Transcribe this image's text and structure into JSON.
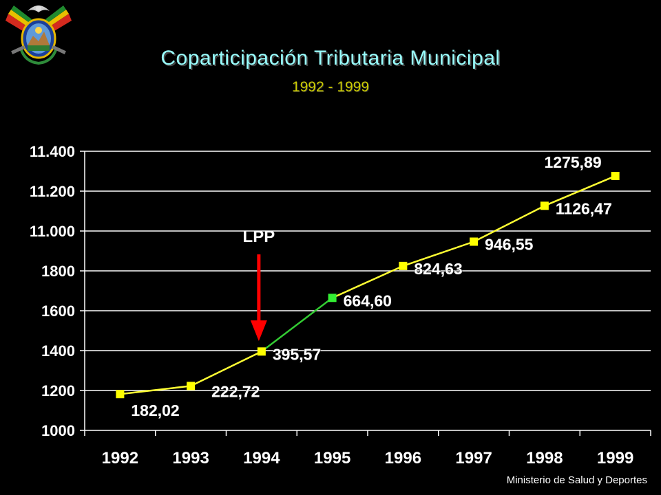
{
  "header": {
    "title": "Coparticipación Tributaria Municipal",
    "subtitle": "1992 - 1999"
  },
  "footer": {
    "text": "Ministerio de Salud y Deportes"
  },
  "colors": {
    "background": "#000000",
    "line_before_lpp": "#ffff33",
    "line_after_lpp": "#33cc33",
    "marker": "#ffff00",
    "marker_highlight": "#33ee33",
    "arrow": "#ff0000",
    "grid": "#ffffff"
  },
  "chart_data": {
    "type": "line",
    "categories": [
      "1992",
      "1993",
      "1994",
      "1995",
      "1996",
      "1997",
      "1998",
      "1999"
    ],
    "y_tick_labels": [
      "1000",
      "1200",
      "1400",
      "1600",
      "1800",
      "11.000",
      "11.200",
      "11.400"
    ],
    "series": [
      {
        "values": [
          182.02,
          222.72,
          395.57,
          664.6,
          824.63,
          946.55,
          1126.47,
          1275.89
        ],
        "labels": [
          "182,02",
          "222,72",
          "395,57",
          "664,60",
          "824,63",
          "946,55",
          "1126,47",
          "1275,89"
        ]
      }
    ],
    "annotation": {
      "text": "LPP",
      "category": "1994"
    },
    "grid": true
  }
}
